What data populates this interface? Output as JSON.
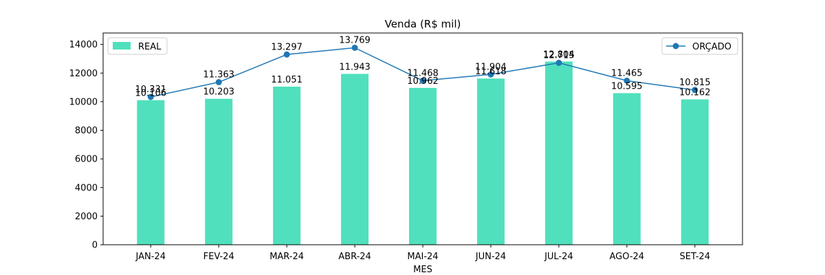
{
  "chart_data": {
    "type": "bar",
    "title": "Venda (R$ mil)",
    "xlabel": "MES",
    "ylabel": "",
    "categories": [
      "JAN-24",
      "FEV-24",
      "MAR-24",
      "ABR-24",
      "MAI-24",
      "JUN-24",
      "JUL-24",
      "AGO-24",
      "SET-24"
    ],
    "ylim": [
      0,
      14800
    ],
    "yticks": [
      0,
      2000,
      4000,
      6000,
      8000,
      10000,
      12000,
      14000
    ],
    "ytick_labels": [
      "0",
      "2000",
      "4000",
      "6000",
      "8000",
      "10000",
      "12000",
      "14000"
    ],
    "grid": false,
    "series": [
      {
        "name": "REAL",
        "kind": "bar",
        "color": "#50e0bd",
        "values": [
          10106,
          10203,
          11051,
          11943,
          10962,
          11618,
          12804,
          10595,
          10162
        ],
        "labels": [
          "10.106",
          "10.203",
          "11.051",
          "11.943",
          "10.962",
          "11.618",
          "12.804",
          "10.595",
          "10.162"
        ],
        "legend_position": "upper-left"
      },
      {
        "name": "ORÇADO",
        "kind": "line",
        "color": "#1f77b4",
        "values": [
          10331,
          11363,
          13297,
          13769,
          11468,
          11904,
          12715,
          11465,
          10815
        ],
        "labels": [
          "10.331",
          "11.363",
          "13.297",
          "13.769",
          "11.468",
          "11.904",
          "12.715",
          "11.465",
          "10.815"
        ],
        "legend_position": "upper-right"
      }
    ]
  }
}
